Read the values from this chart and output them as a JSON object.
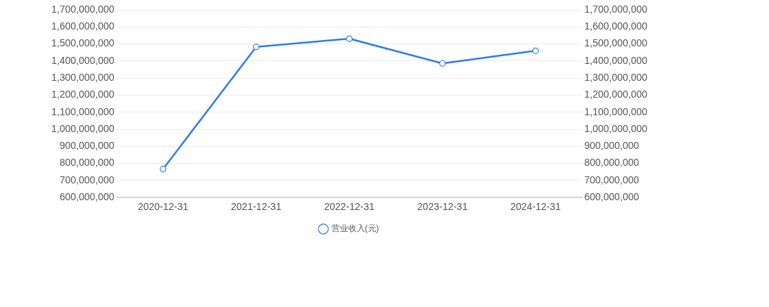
{
  "chart_data": {
    "type": "line",
    "categories": [
      "2020-12-31",
      "2021-12-31",
      "2022-12-31",
      "2023-12-31",
      "2024-12-31"
    ],
    "series": [
      {
        "name": "营业收入(元)",
        "color": "#2f7bf5",
        "values": [
          767000000,
          1483000000,
          1531000000,
          1386000000,
          1460000000
        ]
      }
    ],
    "ylim": [
      600000000,
      1700000000
    ],
    "yticks": [
      {
        "value": 600000000,
        "label": "600,000,000"
      },
      {
        "value": 700000000,
        "label": "700,000,000"
      },
      {
        "value": 800000000,
        "label": "800,000,000"
      },
      {
        "value": 900000000,
        "label": "900,000,000"
      },
      {
        "value": 1000000000,
        "label": "1,000,000,000"
      },
      {
        "value": 1100000000,
        "label": "1,100,000,000"
      },
      {
        "value": 1200000000,
        "label": "1,200,000,000"
      },
      {
        "value": 1300000000,
        "label": "1,300,000,000"
      },
      {
        "value": 1400000000,
        "label": "1,400,000,000"
      },
      {
        "value": 1500000000,
        "label": "1,500,000,000"
      },
      {
        "value": 1600000000,
        "label": "1,600,000,000"
      },
      {
        "value": 1700000000,
        "label": "1,700,000,000"
      }
    ],
    "y2lim": [
      600000000,
      1700000000
    ],
    "y2ticks": [
      {
        "value": 600000000,
        "label": "600,000,000"
      },
      {
        "value": 700000000,
        "label": "700,000,000"
      },
      {
        "value": 800000000,
        "label": "800,000,000"
      },
      {
        "value": 900000000,
        "label": "900,000,000"
      },
      {
        "value": 1000000000,
        "label": "1,000,000,000"
      },
      {
        "value": 1100000000,
        "label": "1,100,000,000"
      },
      {
        "value": 1200000000,
        "label": "1,200,000,000"
      },
      {
        "value": 1300000000,
        "label": "1,300,000,000"
      },
      {
        "value": 1400000000,
        "label": "1,400,000,000"
      },
      {
        "value": 1500000000,
        "label": "1,500,000,000"
      },
      {
        "value": 1600000000,
        "label": "1,600,000,000"
      },
      {
        "value": 1700000000,
        "label": "1,700,000,000"
      }
    ],
    "grid": "y",
    "legend": "bottom",
    "marker": "circle",
    "line_style": "solid"
  }
}
